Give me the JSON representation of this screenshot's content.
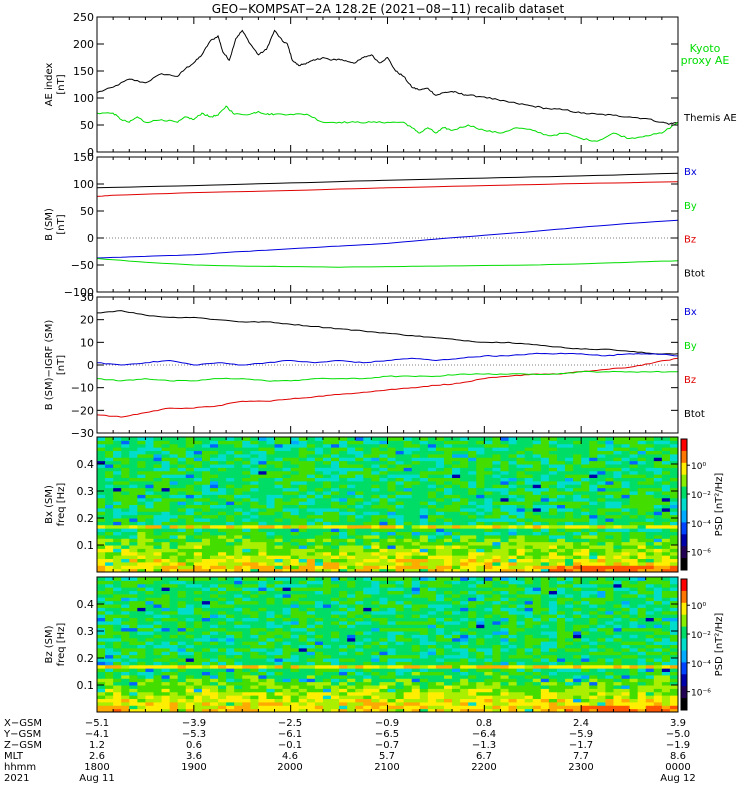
{
  "title": "GEO−KOMPSAT−2A 128.2E (2021−08−11) recalib dataset",
  "colors": {
    "black": "#000000",
    "red": "#e00000",
    "blue": "#0000dd",
    "green": "#00dd00",
    "kyoto": "#00dd00"
  },
  "chart_data": [
    {
      "type": "line",
      "id": "ae",
      "ylabel": "AE index",
      "yunit": "[nT]",
      "ylim": [
        0,
        250
      ],
      "yticks": [
        0,
        50,
        100,
        150,
        200,
        250
      ],
      "xlim": [
        0,
        360
      ],
      "legend": [
        {
          "label": "Kyoto",
          "color": "green"
        },
        {
          "label": "proxy AE",
          "color": "green"
        },
        {
          "label": "Themis AE",
          "color": "black"
        }
      ],
      "series": [
        {
          "name": "Themis AE",
          "color": "black",
          "x": [
            0,
            10,
            20,
            30,
            40,
            50,
            55,
            60,
            65,
            70,
            75,
            78,
            82,
            86,
            90,
            95,
            100,
            105,
            110,
            115,
            118,
            121,
            125,
            130,
            135,
            140,
            145,
            150,
            155,
            160,
            165,
            170,
            175,
            180,
            185,
            190,
            195,
            200,
            205,
            210,
            215,
            220,
            225,
            230,
            240,
            250,
            260,
            270,
            280,
            290,
            300,
            310,
            320,
            330,
            340,
            350,
            355,
            360
          ],
          "y": [
            110,
            120,
            135,
            128,
            145,
            140,
            155,
            165,
            180,
            205,
            215,
            185,
            170,
            210,
            225,
            200,
            180,
            190,
            225,
            205,
            200,
            170,
            160,
            165,
            170,
            175,
            170,
            172,
            168,
            165,
            175,
            180,
            165,
            175,
            150,
            140,
            120,
            115,
            118,
            105,
            110,
            112,
            108,
            105,
            102,
            95,
            90,
            85,
            80,
            78,
            72,
            70,
            68,
            65,
            62,
            55,
            52,
            55
          ]
        },
        {
          "name": "Kyoto proxy AE",
          "color": "green",
          "x": [
            0,
            10,
            15,
            20,
            25,
            30,
            40,
            50,
            55,
            60,
            65,
            70,
            75,
            80,
            85,
            95,
            100,
            105,
            110,
            120,
            130,
            140,
            150,
            160,
            170,
            180,
            190,
            195,
            200,
            205,
            210,
            215,
            220,
            230,
            240,
            250,
            260,
            270,
            280,
            290,
            300,
            310,
            320,
            330,
            340,
            350,
            360
          ],
          "y": [
            72,
            72,
            60,
            55,
            65,
            55,
            60,
            55,
            65,
            60,
            72,
            65,
            68,
            85,
            70,
            70,
            75,
            70,
            70,
            70,
            70,
            55,
            55,
            55,
            55,
            55,
            55,
            45,
            35,
            45,
            35,
            45,
            40,
            50,
            40,
            35,
            45,
            40,
            30,
            35,
            25,
            20,
            35,
            25,
            30,
            35,
            55
          ]
        }
      ]
    },
    {
      "type": "line",
      "id": "bsm",
      "ylabel": "B (SM)",
      "yunit": "[nT]",
      "ylim": [
        -100,
        150
      ],
      "yticks": [
        -100,
        -50,
        0,
        50,
        100,
        150
      ],
      "xlim": [
        0,
        360
      ],
      "legend": [
        {
          "label": "Bx",
          "color": "blue"
        },
        {
          "label": "By",
          "color": "green"
        },
        {
          "label": "Bz",
          "color": "red"
        },
        {
          "label": "Btot",
          "color": "black"
        }
      ],
      "series": [
        {
          "name": "Btot",
          "color": "black",
          "x": [
            0,
            60,
            120,
            180,
            240,
            300,
            360
          ],
          "y": [
            93,
            97,
            102,
            107,
            111,
            115,
            120
          ]
        },
        {
          "name": "Bz",
          "color": "red",
          "x": [
            0,
            10,
            60,
            120,
            180,
            240,
            300,
            360
          ],
          "y": [
            77,
            79,
            84,
            88,
            93,
            97,
            101,
            104
          ]
        },
        {
          "name": "Bx",
          "color": "blue",
          "x": [
            0,
            30,
            60,
            90,
            120,
            150,
            180,
            210,
            240,
            270,
            300,
            330,
            360
          ],
          "y": [
            -37,
            -34,
            -31,
            -25,
            -20,
            -15,
            -10,
            -2,
            5,
            12,
            20,
            27,
            33
          ]
        },
        {
          "name": "By",
          "color": "green",
          "x": [
            0,
            30,
            60,
            90,
            120,
            150,
            180,
            210,
            240,
            270,
            300,
            330,
            360
          ],
          "y": [
            -38,
            -45,
            -50,
            -52,
            -53,
            -54,
            -53,
            -52,
            -51,
            -50,
            -48,
            -45,
            -42
          ]
        }
      ]
    },
    {
      "type": "line",
      "id": "bsmigrf",
      "ylabel": "B (SM)−IGRF (SM)",
      "yunit": "[nT]",
      "ylim": [
        -30,
        30
      ],
      "yticks": [
        -30,
        -20,
        -10,
        0,
        10,
        20,
        30
      ],
      "xlim": [
        0,
        360
      ],
      "legend": [
        {
          "label": "Bx",
          "color": "blue"
        },
        {
          "label": "By",
          "color": "green"
        },
        {
          "label": "Bz",
          "color": "red"
        },
        {
          "label": "Btot",
          "color": "black"
        }
      ],
      "series": [
        {
          "name": "Btot",
          "color": "black",
          "x": [
            0,
            15,
            30,
            45,
            60,
            75,
            90,
            105,
            120,
            135,
            150,
            165,
            180,
            195,
            210,
            225,
            240,
            255,
            270,
            285,
            300,
            315,
            330,
            345,
            360
          ],
          "y": [
            23,
            24,
            22,
            21,
            21,
            20,
            19,
            19,
            18,
            17,
            16,
            15,
            14,
            13,
            12,
            11,
            10,
            10,
            9,
            8,
            7,
            7,
            6,
            5,
            5
          ]
        },
        {
          "name": "Bz",
          "color": "red",
          "x": [
            0,
            15,
            30,
            45,
            60,
            75,
            90,
            105,
            120,
            135,
            150,
            165,
            180,
            195,
            210,
            225,
            240,
            255,
            270,
            285,
            300,
            315,
            330,
            345,
            360
          ],
          "y": [
            -22,
            -23,
            -21,
            -19,
            -19,
            -18,
            -16,
            -16,
            -15,
            -14,
            -13,
            -12,
            -11,
            -10,
            -9,
            -8,
            -6,
            -5,
            -4,
            -4,
            -3,
            -2,
            -1,
            1,
            3
          ]
        },
        {
          "name": "Bx",
          "color": "blue",
          "x": [
            0,
            15,
            30,
            45,
            60,
            75,
            90,
            105,
            120,
            135,
            150,
            165,
            180,
            195,
            210,
            225,
            240,
            255,
            270,
            285,
            300,
            315,
            330,
            345,
            360
          ],
          "y": [
            1,
            0,
            1,
            2,
            0,
            1,
            0,
            1,
            2,
            1,
            2,
            1,
            2,
            3,
            2,
            3,
            4,
            4,
            5,
            5,
            5,
            4,
            5,
            5,
            4
          ]
        },
        {
          "name": "By",
          "color": "green",
          "x": [
            0,
            15,
            30,
            45,
            60,
            75,
            90,
            105,
            120,
            135,
            150,
            165,
            180,
            195,
            210,
            225,
            240,
            255,
            270,
            285,
            300,
            315,
            330,
            345,
            360
          ],
          "y": [
            -6,
            -7,
            -6,
            -7,
            -7,
            -6,
            -6,
            -7,
            -7,
            -6,
            -6,
            -6,
            -5,
            -5,
            -5,
            -4,
            -4,
            -4,
            -4,
            -4,
            -3,
            -3,
            -3,
            -3,
            -3
          ]
        }
      ]
    },
    {
      "type": "heatmap",
      "id": "bxspec",
      "ylabel": "Bx (SM)",
      "yunit": "freq [Hz]",
      "ylim": [
        0,
        0.5
      ],
      "yticks": [
        0.1,
        0.2,
        0.3,
        0.4
      ],
      "colorbar_label": "PSD [nT²/Hz]",
      "colorbar_ticks": [
        "10⁰",
        "10⁻²",
        "10⁻⁴",
        "10⁻⁶"
      ],
      "bands": "high PSD at low freq, orange-yellow line near 0.17 Hz, mostly green-blue above"
    },
    {
      "type": "heatmap",
      "id": "bzspec",
      "ylabel": "Bz (SM)",
      "yunit": "freq [Hz]",
      "ylim": [
        0,
        0.5
      ],
      "yticks": [
        0.1,
        0.2,
        0.3,
        0.4
      ],
      "colorbar_label": "PSD [nT²/Hz]",
      "colorbar_ticks": [
        "10⁰",
        "10⁻²",
        "10⁻⁴",
        "10⁻⁶"
      ],
      "bands": "high PSD at low freq, orange-yellow line near 0.17 Hz, mostly green-blue above"
    }
  ],
  "ephemeris": {
    "row_labels": [
      "X−GSM",
      "Y−GSM",
      "Z−GSM",
      "MLT",
      "hhmm",
      "2021"
    ],
    "columns": [
      {
        "values": [
          "−5.1",
          "−4.1",
          "1.2",
          "2.6",
          "1800",
          "Aug 11"
        ]
      },
      {
        "values": [
          "−3.9",
          "−5.3",
          "0.6",
          "3.6",
          "1900",
          ""
        ]
      },
      {
        "values": [
          "−2.5",
          "−6.1",
          "−0.1",
          "4.6",
          "2000",
          ""
        ]
      },
      {
        "values": [
          "−0.9",
          "−6.5",
          "−0.7",
          "5.7",
          "2100",
          ""
        ]
      },
      {
        "values": [
          "0.8",
          "−6.4",
          "−1.3",
          "6.7",
          "2200",
          ""
        ]
      },
      {
        "values": [
          "2.4",
          "−5.9",
          "−1.7",
          "7.7",
          "2300",
          ""
        ]
      },
      {
        "values": [
          "3.9",
          "−5.0",
          "−1.9",
          "8.6",
          "0000",
          "Aug 12"
        ]
      }
    ]
  }
}
